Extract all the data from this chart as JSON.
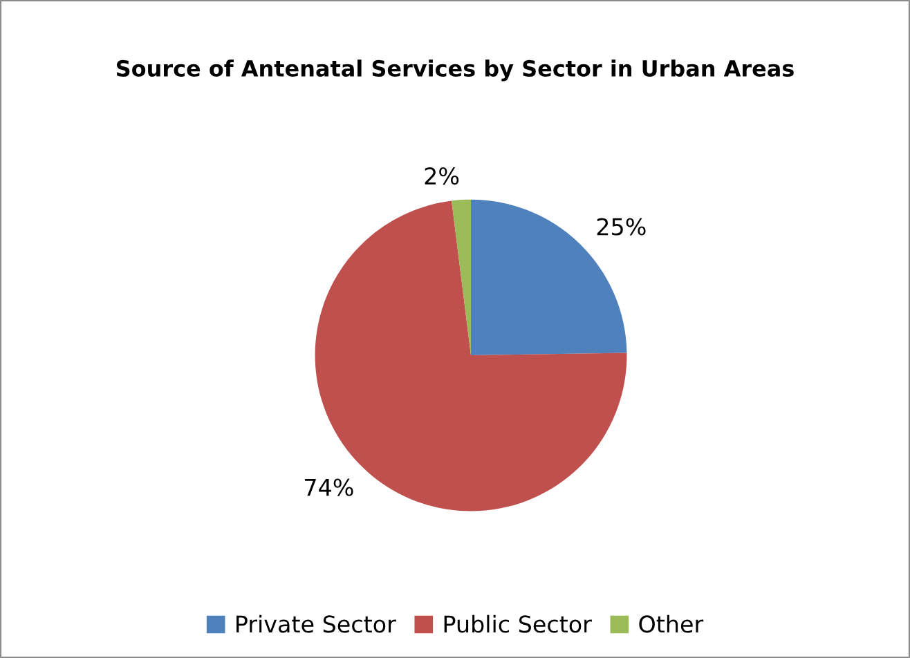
{
  "chart_data": {
    "type": "pie",
    "title": "Source of Antenatal Services by Sector in Urban Areas",
    "categories": [
      "Private Sector",
      "Public Sector",
      "Other"
    ],
    "values": [
      25,
      74,
      2
    ],
    "value_labels": [
      "25%",
      "74%",
      "2%"
    ],
    "colors": [
      "#4f81bd",
      "#c0504d",
      "#9bbb59"
    ],
    "legend": "bottom"
  }
}
